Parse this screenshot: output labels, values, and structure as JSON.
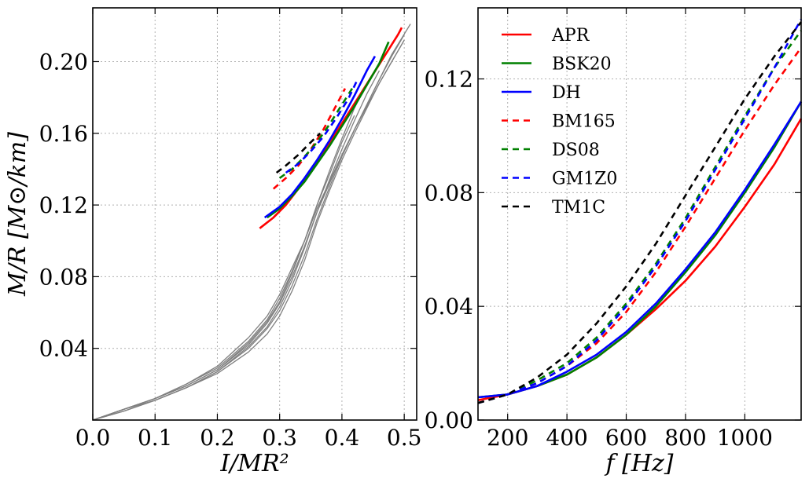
{
  "chart_data": [
    {
      "type": "line",
      "xlabel": "I/MR²",
      "ylabel": "M/R  [M⊙/km]",
      "xlim": [
        0.0,
        0.52
      ],
      "ylim": [
        0.0,
        0.23
      ],
      "xticks": [
        0.0,
        0.1,
        0.2,
        0.3,
        0.4,
        0.5
      ],
      "xtick_labels": [
        "0.0",
        "0.1",
        "0.2",
        "0.3",
        "0.4",
        "0.5"
      ],
      "yticks": [
        0.04,
        0.08,
        0.12,
        0.16,
        0.2
      ],
      "ytick_labels": [
        "0.04",
        "0.08",
        "0.12",
        "0.16",
        "0.20"
      ],
      "grid": true,
      "series": [
        {
          "color": "#808080",
          "style": "solid",
          "x": [
            0.0,
            0.05,
            0.1,
            0.15,
            0.2,
            0.25,
            0.28,
            0.3,
            0.32,
            0.34,
            0.36,
            0.38,
            0.4,
            0.42,
            0.44,
            0.46,
            0.48,
            0.5
          ],
          "y": [
            0.0,
            0.006,
            0.012,
            0.02,
            0.03,
            0.046,
            0.058,
            0.07,
            0.085,
            0.1,
            0.118,
            0.133,
            0.148,
            0.162,
            0.175,
            0.188,
            0.2,
            0.212
          ]
        },
        {
          "color": "#808080",
          "style": "solid",
          "x": [
            0.0,
            0.05,
            0.1,
            0.15,
            0.2,
            0.25,
            0.28,
            0.3,
            0.32,
            0.34,
            0.36,
            0.38,
            0.4,
            0.42,
            0.44,
            0.46,
            0.48,
            0.5
          ],
          "y": [
            0.0,
            0.006,
            0.012,
            0.019,
            0.028,
            0.042,
            0.054,
            0.065,
            0.08,
            0.097,
            0.116,
            0.132,
            0.148,
            0.162,
            0.176,
            0.19,
            0.203,
            0.215
          ]
        },
        {
          "color": "#808080",
          "style": "solid",
          "x": [
            0.0,
            0.05,
            0.1,
            0.15,
            0.2,
            0.25,
            0.28,
            0.3,
            0.32,
            0.34,
            0.36,
            0.38,
            0.4,
            0.42,
            0.44,
            0.46,
            0.48,
            0.51
          ],
          "y": [
            0.0,
            0.006,
            0.011,
            0.018,
            0.027,
            0.04,
            0.051,
            0.061,
            0.075,
            0.092,
            0.112,
            0.13,
            0.147,
            0.162,
            0.176,
            0.19,
            0.204,
            0.221
          ]
        },
        {
          "color": "#808080",
          "style": "solid",
          "x": [
            0.0,
            0.05,
            0.1,
            0.15,
            0.2,
            0.25,
            0.28,
            0.3,
            0.32,
            0.34,
            0.36,
            0.38,
            0.4,
            0.42,
            0.44,
            0.46,
            0.48,
            0.5
          ],
          "y": [
            0.0,
            0.005,
            0.011,
            0.018,
            0.026,
            0.038,
            0.048,
            0.058,
            0.072,
            0.089,
            0.11,
            0.128,
            0.145,
            0.16,
            0.174,
            0.188,
            0.2,
            0.212
          ]
        },
        {
          "color": "#808080",
          "style": "solid",
          "x": [
            0.0,
            0.05,
            0.1,
            0.15,
            0.2,
            0.25,
            0.28,
            0.3,
            0.32,
            0.34,
            0.36,
            0.38,
            0.4,
            0.42
          ],
          "y": [
            0.0,
            0.006,
            0.012,
            0.02,
            0.029,
            0.044,
            0.056,
            0.068,
            0.083,
            0.1,
            0.12,
            0.137,
            0.155,
            0.17
          ]
        },
        {
          "color": "#808080",
          "style": "solid",
          "x": [
            0.0,
            0.05,
            0.1,
            0.15,
            0.2,
            0.25,
            0.28,
            0.3,
            0.32,
            0.34,
            0.36,
            0.38,
            0.4,
            0.42,
            0.43
          ],
          "y": [
            0.0,
            0.006,
            0.012,
            0.019,
            0.028,
            0.043,
            0.055,
            0.066,
            0.082,
            0.1,
            0.12,
            0.139,
            0.157,
            0.174,
            0.181
          ]
        },
        {
          "color": "#808080",
          "style": "solid",
          "x": [
            0.0,
            0.05,
            0.1,
            0.15,
            0.2,
            0.25,
            0.28,
            0.3,
            0.32,
            0.34,
            0.36,
            0.38,
            0.4,
            0.42,
            0.44,
            0.46
          ],
          "y": [
            0.0,
            0.005,
            0.011,
            0.018,
            0.027,
            0.041,
            0.052,
            0.063,
            0.078,
            0.096,
            0.116,
            0.134,
            0.151,
            0.167,
            0.182,
            0.195
          ]
        },
        {
          "color": "#ff0000",
          "style": "solid",
          "x": [
            0.268,
            0.29,
            0.31,
            0.33,
            0.35,
            0.37,
            0.39,
            0.41,
            0.43,
            0.45,
            0.47,
            0.49,
            0.496
          ],
          "y": [
            0.107,
            0.113,
            0.12,
            0.129,
            0.139,
            0.149,
            0.16,
            0.171,
            0.182,
            0.193,
            0.204,
            0.215,
            0.219
          ]
        },
        {
          "color": "#008000",
          "style": "solid",
          "x": [
            0.28,
            0.3,
            0.32,
            0.34,
            0.36,
            0.38,
            0.4,
            0.42,
            0.44,
            0.46,
            0.475
          ],
          "y": [
            0.113,
            0.118,
            0.125,
            0.133,
            0.143,
            0.153,
            0.164,
            0.175,
            0.187,
            0.199,
            0.211
          ]
        },
        {
          "color": "#0000ff",
          "style": "solid",
          "x": [
            0.276,
            0.3,
            0.32,
            0.34,
            0.36,
            0.38,
            0.4,
            0.42,
            0.44,
            0.453
          ],
          "y": [
            0.113,
            0.119,
            0.126,
            0.135,
            0.145,
            0.156,
            0.168,
            0.181,
            0.195,
            0.203
          ]
        },
        {
          "color": "#ff0000",
          "style": "dashed",
          "x": [
            0.29,
            0.31,
            0.33,
            0.35,
            0.37,
            0.39,
            0.405
          ],
          "y": [
            0.129,
            0.135,
            0.142,
            0.151,
            0.162,
            0.175,
            0.185
          ]
        },
        {
          "color": "#008000",
          "style": "dashed",
          "x": [
            0.3,
            0.32,
            0.34,
            0.36,
            0.38,
            0.4,
            0.42
          ],
          "y": [
            0.135,
            0.14,
            0.147,
            0.155,
            0.165,
            0.176,
            0.187
          ]
        },
        {
          "color": "#0000ff",
          "style": "dashed",
          "x": [
            0.31,
            0.33,
            0.35,
            0.37,
            0.39,
            0.41,
            0.425
          ],
          "y": [
            0.138,
            0.143,
            0.15,
            0.158,
            0.168,
            0.179,
            0.19
          ]
        },
        {
          "color": "#000000",
          "style": "dashed",
          "x": [
            0.295,
            0.31,
            0.33,
            0.35,
            0.365
          ],
          "y": [
            0.138,
            0.142,
            0.148,
            0.155,
            0.16
          ]
        }
      ]
    },
    {
      "type": "line",
      "xlabel": "f [Hz]",
      "ylabel": "",
      "xlim": [
        100,
        1190
      ],
      "ylim": [
        0.0,
        0.145
      ],
      "xticks": [
        200,
        400,
        600,
        800,
        1000
      ],
      "xtick_labels": [
        "200",
        "400",
        "600",
        "800",
        "1000"
      ],
      "yticks": [
        0.0,
        0.04,
        0.08,
        0.12
      ],
      "ytick_labels": [
        "0.00",
        "0.04",
        "0.08",
        "0.12"
      ],
      "grid": true,
      "legend": {
        "placement": "top-left",
        "entries": [
          {
            "label": "APR",
            "color": "#ff0000",
            "style": "solid"
          },
          {
            "label": "BSK20",
            "color": "#008000",
            "style": "solid"
          },
          {
            "label": "DH",
            "color": "#0000ff",
            "style": "solid"
          },
          {
            "label": "BM165",
            "color": "#ff0000",
            "style": "dashed"
          },
          {
            "label": "DS08",
            "color": "#008000",
            "style": "dashed"
          },
          {
            "label": "GM1Z0",
            "color": "#0000ff",
            "style": "dashed"
          },
          {
            "label": "TM1C",
            "color": "#000000",
            "style": "dashed"
          }
        ]
      },
      "series": [
        {
          "name": "APR",
          "color": "#ff0000",
          "style": "solid",
          "x": [
            100,
            200,
            300,
            400,
            500,
            600,
            700,
            800,
            900,
            1000,
            1100,
            1190
          ],
          "y": [
            0.007,
            0.009,
            0.012,
            0.016,
            0.022,
            0.03,
            0.039,
            0.049,
            0.061,
            0.075,
            0.09,
            0.106
          ]
        },
        {
          "name": "BSK20",
          "color": "#008000",
          "style": "solid",
          "x": [
            100,
            200,
            300,
            400,
            500,
            600,
            700,
            800,
            900,
            1000,
            1100,
            1190
          ],
          "y": [
            0.008,
            0.009,
            0.012,
            0.016,
            0.022,
            0.03,
            0.04,
            0.052,
            0.065,
            0.08,
            0.096,
            0.112
          ]
        },
        {
          "name": "DH",
          "color": "#0000ff",
          "style": "solid",
          "x": [
            100,
            200,
            300,
            400,
            500,
            600,
            700,
            800,
            900,
            1000,
            1100,
            1190
          ],
          "y": [
            0.008,
            0.009,
            0.012,
            0.017,
            0.023,
            0.031,
            0.041,
            0.053,
            0.066,
            0.081,
            0.097,
            0.112
          ]
        },
        {
          "name": "BM165",
          "color": "#ff0000",
          "style": "dashed",
          "x": [
            100,
            200,
            300,
            400,
            500,
            600,
            700,
            800,
            900,
            1000,
            1100,
            1190
          ],
          "y": [
            0.006,
            0.009,
            0.013,
            0.019,
            0.027,
            0.038,
            0.052,
            0.068,
            0.085,
            0.102,
            0.118,
            0.131
          ]
        },
        {
          "name": "DS08",
          "color": "#008000",
          "style": "dashed",
          "x": [
            100,
            200,
            300,
            400,
            500,
            600,
            700,
            800,
            900,
            1000,
            1100,
            1190
          ],
          "y": [
            0.006,
            0.009,
            0.014,
            0.02,
            0.029,
            0.041,
            0.055,
            0.071,
            0.089,
            0.107,
            0.124,
            0.137
          ]
        },
        {
          "name": "GM1Z0",
          "color": "#0000ff",
          "style": "dashed",
          "x": [
            100,
            200,
            300,
            400,
            500,
            600,
            700,
            800,
            900,
            1000,
            1100,
            1190
          ],
          "y": [
            0.006,
            0.009,
            0.013,
            0.019,
            0.028,
            0.04,
            0.054,
            0.07,
            0.088,
            0.106,
            0.124,
            0.141
          ]
        },
        {
          "name": "TM1C",
          "color": "#000000",
          "style": "dashed",
          "x": [
            100,
            200,
            300,
            400,
            500,
            600,
            700,
            800,
            900,
            1000,
            1100,
            1190
          ],
          "y": [
            0.006,
            0.009,
            0.015,
            0.023,
            0.034,
            0.047,
            0.062,
            0.079,
            0.096,
            0.113,
            0.128,
            0.14
          ]
        }
      ]
    }
  ]
}
